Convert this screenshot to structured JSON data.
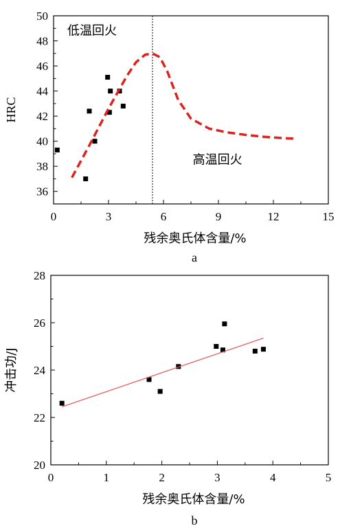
{
  "chart_data": [
    {
      "panel": "a",
      "type": "scatter",
      "xlabel": "残余奥氏体含量/%",
      "ylabel": "HRC",
      "xlim": [
        0,
        15
      ],
      "ylim": [
        35,
        50
      ],
      "xticks": [
        0,
        3,
        6,
        9,
        12,
        15
      ],
      "yticks": [
        36,
        38,
        40,
        42,
        44,
        46,
        48,
        50
      ],
      "series": [
        {
          "type": "scatter",
          "color": "#000000",
          "x": [
            0.2,
            1.75,
            1.95,
            2.25,
            2.95,
            3.05,
            3.1,
            3.6,
            3.8
          ],
          "y": [
            39.3,
            37.0,
            42.4,
            40.0,
            45.1,
            42.3,
            44.0,
            44.0,
            42.8
          ]
        },
        {
          "type": "line",
          "style": "dashed",
          "color": "#dd2222",
          "x": [
            1.0,
            2.0,
            3.0,
            4.0,
            4.5,
            5.0,
            5.4,
            5.8,
            6.2,
            6.8,
            7.5,
            8.5,
            9.5,
            10.5,
            11.5,
            12.5,
            13.2
          ],
          "y": [
            37.1,
            39.8,
            42.6,
            45.2,
            46.3,
            46.9,
            47.0,
            46.7,
            45.6,
            43.3,
            41.8,
            41.0,
            40.7,
            40.5,
            40.35,
            40.25,
            40.2
          ]
        }
      ],
      "vline": 5.4,
      "annotations": [
        {
          "text": "低温回火",
          "x": 0.75,
          "y": 48.5
        },
        {
          "text": "高温回火",
          "x": 7.6,
          "y": 38.2
        }
      ]
    },
    {
      "panel": "b",
      "type": "scatter",
      "xlabel": "残余奥氏体含量/%",
      "ylabel": "冲击功/J",
      "xlim": [
        0,
        5
      ],
      "ylim": [
        20,
        28
      ],
      "xticks": [
        0,
        1,
        2,
        3,
        4,
        5
      ],
      "yticks": [
        20,
        22,
        24,
        26,
        28
      ],
      "series": [
        {
          "type": "scatter",
          "color": "#000000",
          "x": [
            0.2,
            1.77,
            1.97,
            2.3,
            2.98,
            3.1,
            3.13,
            3.68,
            3.83
          ],
          "y": [
            22.6,
            23.6,
            23.1,
            24.15,
            25.0,
            24.85,
            25.95,
            24.8,
            24.88
          ]
        },
        {
          "type": "line",
          "style": "solid",
          "color": "#e06060",
          "x": [
            0.2,
            3.83
          ],
          "y": [
            22.45,
            25.35
          ]
        }
      ]
    }
  ],
  "panel_labels": {
    "a": "a",
    "b": "b"
  }
}
